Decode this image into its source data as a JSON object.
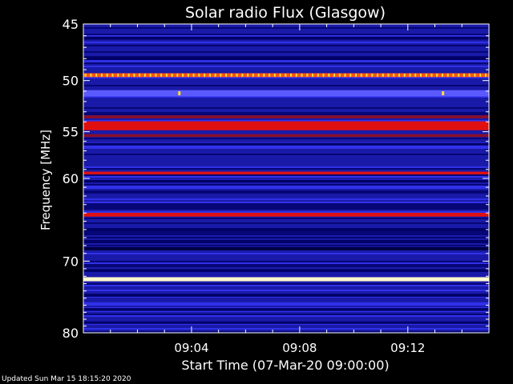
{
  "footer": {
    "updated": "Updated Sun Mar 15 18:15:20 2020"
  },
  "chart_data": {
    "type": "heatmap",
    "title": "Solar radio Flux (Glasgow)",
    "xlabel": "Start Time (07-Mar-20 09:00:00)",
    "ylabel": "Frequency [MHz]",
    "x_unit": "minutes after 09:00",
    "xlim": [
      0,
      15
    ],
    "ylim": [
      45,
      80
    ],
    "y_log_scale": true,
    "x_ticks": [
      {
        "value": 4,
        "label": "09:04"
      },
      {
        "value": 8,
        "label": "09:08"
      },
      {
        "value": 12,
        "label": "09:12"
      }
    ],
    "y_ticks": [
      {
        "value": 45,
        "label": "45"
      },
      {
        "value": 50,
        "label": "50"
      },
      {
        "value": 55,
        "label": "55"
      },
      {
        "value": 60,
        "label": "60"
      },
      {
        "value": 70,
        "label": "70"
      },
      {
        "value": 80,
        "label": "80"
      }
    ],
    "colors": {
      "background": "#000000",
      "low": "#1a1aa8",
      "mid": "#3a3aff",
      "dark": "#000066",
      "red": "#e01010",
      "dark_red": "#8a0f2a",
      "hot": "#fffacd",
      "yellow": "#ffdd33"
    },
    "bands": [
      {
        "freq": 46.2,
        "width": 0.25,
        "color": "#000066"
      },
      {
        "freq": 48.0,
        "width": 0.25,
        "color": "#000066"
      },
      {
        "freq": 49.5,
        "width": 0.35,
        "color": "#ff5511"
      },
      {
        "freq": 51.2,
        "width": 0.6,
        "color": "#5a5aff"
      },
      {
        "freq": 53.5,
        "width": 0.3,
        "color": "#8a0f2a"
      },
      {
        "freq": 54.4,
        "width": 0.9,
        "color": "#e01010"
      },
      {
        "freq": 55.4,
        "width": 0.3,
        "color": "#8a0f2a"
      },
      {
        "freq": 56.3,
        "width": 0.25,
        "color": "#000066"
      },
      {
        "freq": 59.4,
        "width": 0.3,
        "color": "#e01010"
      },
      {
        "freq": 60.3,
        "width": 0.3,
        "color": "#000066"
      },
      {
        "freq": 64.2,
        "width": 0.45,
        "color": "#e01010"
      },
      {
        "freq": 66.0,
        "width": 0.35,
        "color": "#000066"
      },
      {
        "freq": 67.5,
        "width": 0.4,
        "color": "#000066"
      },
      {
        "freq": 68.4,
        "width": 0.4,
        "color": "#000044"
      },
      {
        "freq": 71.2,
        "width": 0.3,
        "color": "#000066"
      },
      {
        "freq": 72.4,
        "width": 0.55,
        "color": "#fffacd"
      },
      {
        "freq": 74.6,
        "width": 0.4,
        "color": "#000066"
      },
      {
        "freq": 76.6,
        "width": 0.4,
        "color": "#000066"
      },
      {
        "freq": 78.5,
        "width": 0.35,
        "color": "#000066"
      }
    ],
    "spikes": [
      {
        "time": 3.55,
        "freq": 51.2,
        "color": "#ffdd33"
      },
      {
        "time": 13.3,
        "freq": 51.2,
        "color": "#ffdd33"
      }
    ]
  }
}
